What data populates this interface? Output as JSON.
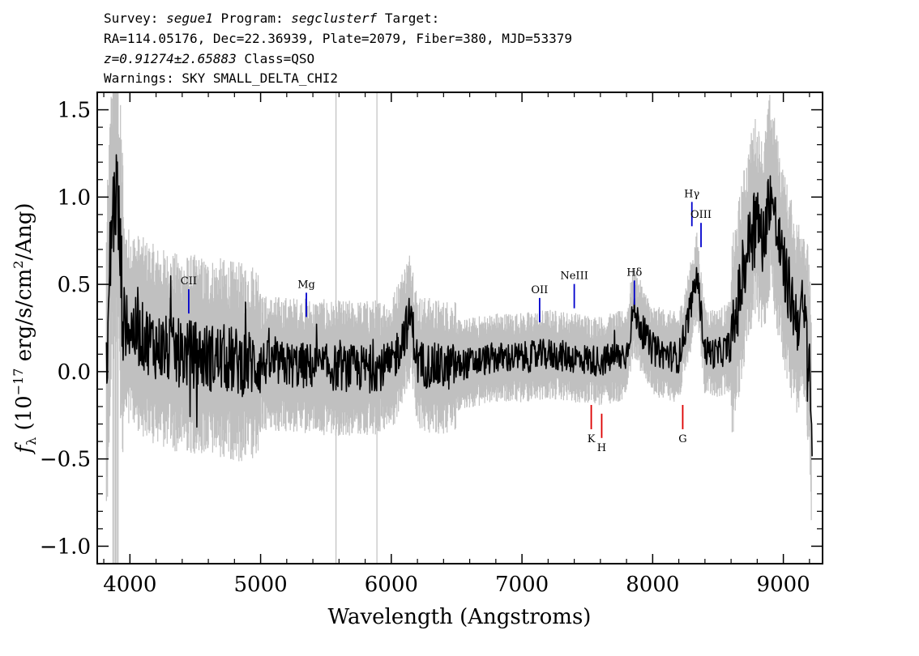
{
  "header": {
    "survey_label": "Survey:",
    "survey": "segue1",
    "program_label": "Program:",
    "program": "segclusterf",
    "target_label": "Target:",
    "line2": "RA=114.05176, Dec=22.36939, Plate=2079, Fiber=380, MJD=53379",
    "redshift": "z=0.91274±2.65883",
    "class": "Class=QSO",
    "warnings": "Warnings: SKY SMALL_DELTA_CHI2"
  },
  "colors": {
    "spectrum": "#000000",
    "error_band": "#c0c0c0",
    "emission_line": "#0000cc",
    "absorption_line": "#dd0000"
  },
  "chart_data": {
    "type": "line",
    "xlabel": "Wavelength (Angstroms)",
    "ylabel": "f_λ (10^-17 erg/s/cm²/Ang)",
    "xlim": [
      3750,
      9300
    ],
    "ylim": [
      -1.1,
      1.6
    ],
    "x_ticks": [
      4000,
      5000,
      6000,
      7000,
      8000,
      9000
    ],
    "y_ticks": [
      -1.0,
      -0.5,
      0.0,
      0.5,
      1.0,
      1.5
    ],
    "x_tick_labels": [
      "4000",
      "5000",
      "6000",
      "7000",
      "8000",
      "9000"
    ],
    "y_tick_labels": [
      "−1.0",
      "−0.5",
      "0.0",
      "0.5",
      "1.0",
      "1.5"
    ],
    "series": [
      {
        "role": "flux",
        "x": [
          3820,
          3860,
          3900,
          3950,
          4000,
          4100,
          4200,
          4300,
          4400,
          4500,
          4600,
          4700,
          4800,
          4900,
          5000,
          5200,
          5400,
          5600,
          5800,
          6000,
          6150,
          6200,
          6400,
          6600,
          6800,
          7000,
          7200,
          7400,
          7600,
          7800,
          7850,
          8000,
          8200,
          8300,
          8340,
          8400,
          8500,
          8600,
          8700,
          8780,
          8850,
          8900,
          8950,
          9000,
          9100,
          9150,
          9200,
          9220
        ],
        "y": [
          0.0,
          0.85,
          1.05,
          0.3,
          0.25,
          0.2,
          0.15,
          0.12,
          0.1,
          0.1,
          0.08,
          0.08,
          0.06,
          0.05,
          0.05,
          0.04,
          0.03,
          0.02,
          0.02,
          0.03,
          0.32,
          0.05,
          0.02,
          0.05,
          0.08,
          0.08,
          0.1,
          0.08,
          0.06,
          0.1,
          0.35,
          0.12,
          0.08,
          0.4,
          0.55,
          0.12,
          0.1,
          0.15,
          0.6,
          0.9,
          0.75,
          1.05,
          0.8,
          0.6,
          0.3,
          0.35,
          0.1,
          -0.45
        ]
      }
    ],
    "line_labels": [
      {
        "label": "CII",
        "x": 4450,
        "y": 0.5,
        "kind": "emission"
      },
      {
        "label": "Mg",
        "x": 5350,
        "y": 0.48,
        "kind": "emission"
      },
      {
        "label": "OII",
        "x": 7135,
        "y": 0.45,
        "kind": "emission"
      },
      {
        "label": "NeIII",
        "x": 7400,
        "y": 0.53,
        "kind": "emission"
      },
      {
        "label": "Hδ",
        "x": 7860,
        "y": 0.55,
        "kind": "emission"
      },
      {
        "label": "Hγ",
        "x": 8300,
        "y": 1.0,
        "kind": "emission"
      },
      {
        "label": "OIII",
        "x": 8370,
        "y": 0.88,
        "kind": "emission"
      },
      {
        "label": "K",
        "x": 7530,
        "y": -0.33,
        "kind": "absorption"
      },
      {
        "label": "H",
        "x": 7610,
        "y": -0.38,
        "kind": "absorption"
      },
      {
        "label": "G",
        "x": 8230,
        "y": -0.33,
        "kind": "absorption"
      }
    ]
  }
}
